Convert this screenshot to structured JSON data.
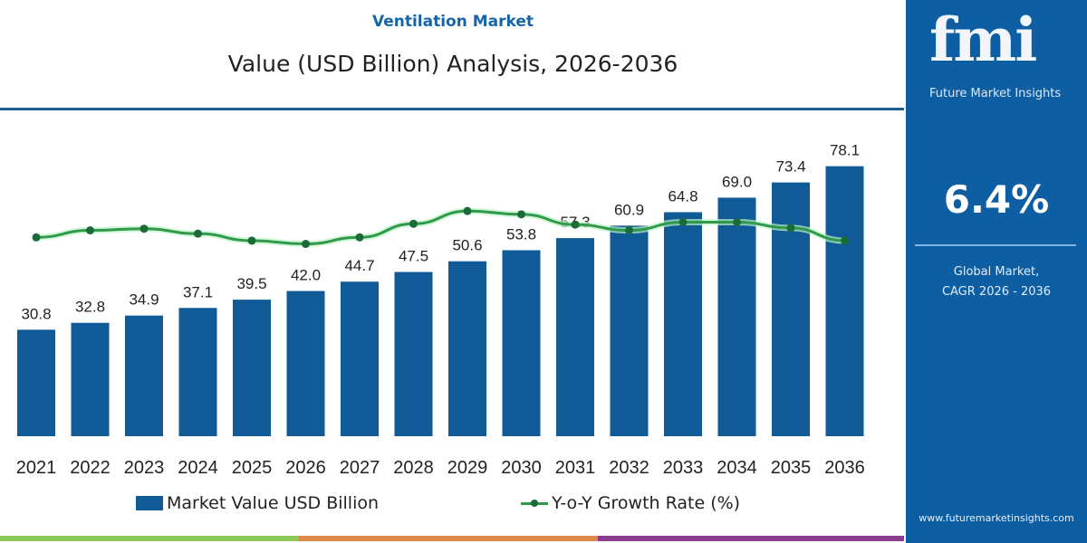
{
  "header": {
    "market_name": "Ventilation Market",
    "title": "Value (USD Billion) Analysis, 2026-2036"
  },
  "side_panel": {
    "logo_text": "fmi",
    "brand": "Future Market Insights",
    "cagr_value": "6.4%",
    "cagr_label_line1": "Global Market,",
    "cagr_label_line2": "CAGR 2026 - 2036",
    "url": "www.futuremarketinsights.com"
  },
  "colors": {
    "bar": "#0f5a97",
    "line": "#2e9a4a",
    "marker": "#1c6a3a",
    "panel": "#0e5ea4",
    "strips": [
      "#8fc85a",
      "#e0874a",
      "#8a3d8f"
    ]
  },
  "chart_data": {
    "type": "bar+line",
    "categories": [
      "2021",
      "2022",
      "2023",
      "2024",
      "2025",
      "2026",
      "2027",
      "2028",
      "2029",
      "2030",
      "2031",
      "2032",
      "2033",
      "2034",
      "2035",
      "2036"
    ],
    "series": [
      {
        "name": "Market Value USD Billion",
        "type": "bar",
        "values": [
          30.8,
          32.8,
          34.9,
          37.1,
          39.5,
          42.0,
          44.7,
          47.5,
          50.6,
          53.8,
          57.3,
          60.9,
          64.8,
          69.0,
          73.4,
          78.1
        ],
        "labels": [
          "30.8",
          "32.8",
          "34.9",
          "37.1",
          "39.5",
          "42.0",
          "44.7",
          "47.5",
          "50.6",
          "53.8",
          "57.3",
          "60.9",
          "64.8",
          "69.0",
          "73.4",
          "78.1"
        ]
      },
      {
        "name": "Y-o-Y Growth Rate (%)",
        "type": "line",
        "axis": "hidden secondary",
        "values": [
          6.16,
          6.33,
          6.37,
          6.25,
          6.08,
          6.0,
          6.16,
          6.49,
          6.8,
          6.72,
          6.47,
          6.33,
          6.53,
          6.53,
          6.39,
          6.08
        ]
      }
    ],
    "ylim": [
      0,
      80
    ],
    "y2lim": [
      5.0,
      7.2
    ],
    "grid": false,
    "legend": "bottom",
    "xlabel": "",
    "ylabel": ""
  }
}
